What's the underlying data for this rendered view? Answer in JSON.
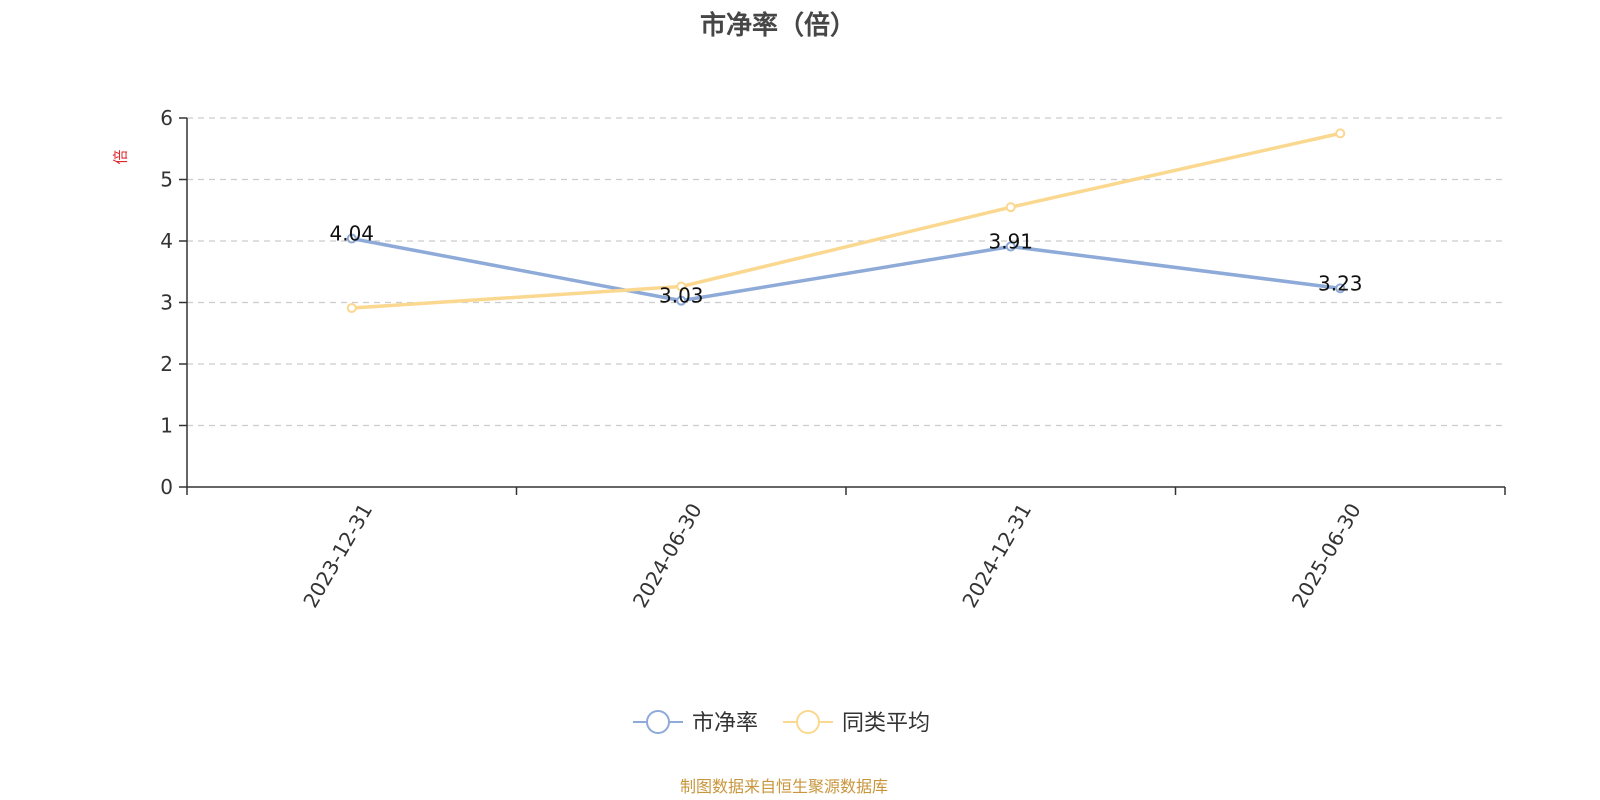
{
  "chart_data": {
    "type": "line",
    "title": "市净率（倍）",
    "ylabel": "倍",
    "categories": [
      "2023-12-31",
      "2024-06-30",
      "2024-12-31",
      "2025-06-30"
    ],
    "ylim": [
      0,
      6
    ],
    "yticks": [
      0,
      1,
      2,
      3,
      4,
      5,
      6
    ],
    "grid": true,
    "legend_position": "bottom-center",
    "series": [
      {
        "name": "市净率",
        "values": [
          4.04,
          3.03,
          3.91,
          3.23
        ],
        "color": "#8eaad8",
        "labels": [
          "4.04",
          "3.03",
          "3.91",
          "3.23"
        ]
      },
      {
        "name": "同类平均",
        "values": [
          2.91,
          3.26,
          4.55,
          5.75
        ],
        "color": "#fbd88f"
      }
    ]
  },
  "colors": {
    "unit_label": "#e0262b",
    "source_text": "#c8963c",
    "axis": "#333333",
    "grid": "#cccccc"
  },
  "source": "制图数据来自恒生聚源数据库"
}
